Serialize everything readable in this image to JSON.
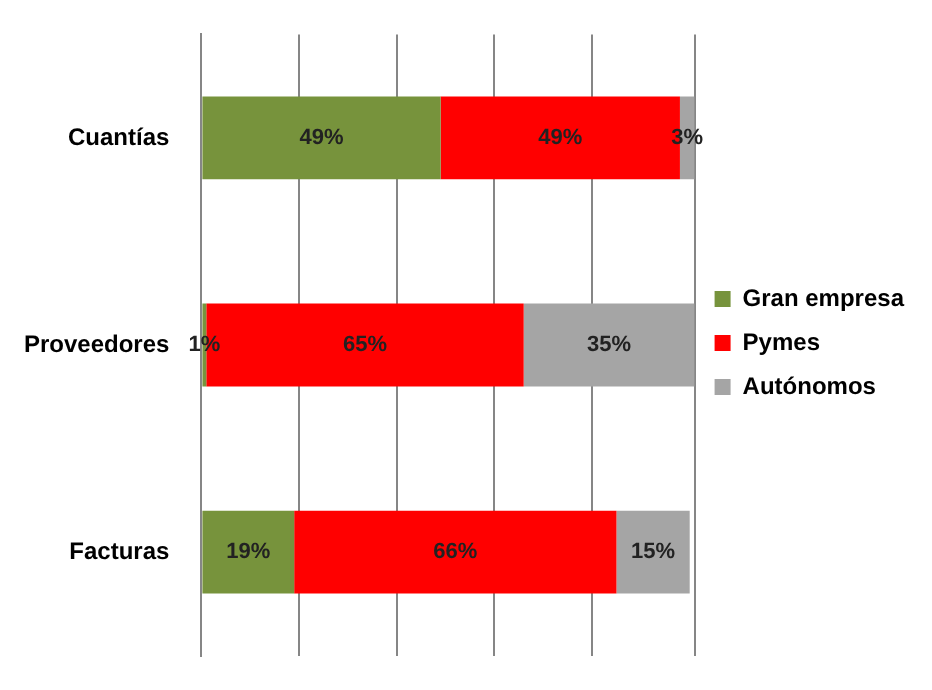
{
  "chart_data": {
    "type": "bar",
    "orientation": "horizontal",
    "stacked": true,
    "categories": [
      "Cuantías",
      "Proveedores",
      "Facturas"
    ],
    "series": [
      {
        "name": "Gran empresa",
        "color": "#77933c",
        "values": [
          49,
          1,
          19
        ],
        "value_labels": [
          "49%",
          "1%",
          "19%"
        ]
      },
      {
        "name": "Pymes",
        "color": "#ff0000",
        "values": [
          49,
          65,
          66
        ],
        "value_labels": [
          "49%",
          "65%",
          "66%"
        ]
      },
      {
        "name": "Autónomos",
        "color": "#a5a5a5",
        "values": [
          3,
          35,
          15
        ],
        "value_labels": [
          "3%",
          "35%",
          "15%"
        ]
      }
    ],
    "tick_labels": "y",
    "grid": "x",
    "legend": "right"
  }
}
